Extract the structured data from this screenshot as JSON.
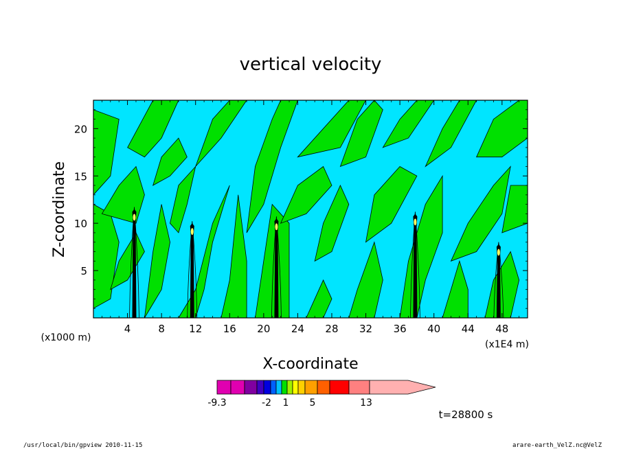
{
  "chart_data": {
    "type": "heatmap",
    "title": "vertical velocity",
    "xlabel": "X-coordinate",
    "ylabel": "Z-coordinate",
    "x_unit_left": "(x1000 m)",
    "x_unit_right": "(x1E4 m)",
    "xlim": [
      0,
      51
    ],
    "ylim": [
      0,
      23
    ],
    "x_ticks": [
      4,
      8,
      12,
      16,
      20,
      24,
      28,
      32,
      36,
      40,
      44,
      48
    ],
    "y_ticks": [
      5,
      10,
      15,
      20
    ],
    "background_level_color": "#00e5ff",
    "green_level_color": "#00e000",
    "updraft_columns": [
      {
        "x": 4.8,
        "top": 11.5
      },
      {
        "x": 11.6,
        "top": 10.0
      },
      {
        "x": 21.5,
        "top": 10.5
      },
      {
        "x": 37.8,
        "top": 11.0
      },
      {
        "x": 47.6,
        "top": 7.8
      }
    ],
    "green_regions": [
      {
        "pts": [
          [
            0,
            13
          ],
          [
            2,
            15
          ],
          [
            3,
            21
          ],
          [
            0,
            22
          ]
        ]
      },
      {
        "pts": [
          [
            0,
            1
          ],
          [
            2,
            2
          ],
          [
            3,
            8
          ],
          [
            2,
            11
          ],
          [
            0,
            12
          ]
        ]
      },
      {
        "pts": [
          [
            1,
            11
          ],
          [
            3,
            14
          ],
          [
            5,
            16
          ],
          [
            6,
            13
          ],
          [
            5,
            10
          ]
        ]
      },
      {
        "pts": [
          [
            4,
            18
          ],
          [
            7,
            23
          ],
          [
            10,
            23
          ],
          [
            8,
            19
          ],
          [
            6,
            17
          ]
        ]
      },
      {
        "pts": [
          [
            6,
            0
          ],
          [
            8,
            3
          ],
          [
            9,
            8
          ],
          [
            8,
            12
          ],
          [
            7,
            7
          ]
        ]
      },
      {
        "pts": [
          [
            9,
            10
          ],
          [
            10,
            14
          ],
          [
            12,
            16
          ],
          [
            11,
            12
          ],
          [
            10,
            9
          ]
        ]
      },
      {
        "pts": [
          [
            10,
            0
          ],
          [
            12,
            3
          ],
          [
            14,
            10
          ],
          [
            16,
            14
          ],
          [
            14,
            8
          ],
          [
            13,
            3
          ],
          [
            12,
            0
          ]
        ]
      },
      {
        "pts": [
          [
            12,
            16
          ],
          [
            14,
            21
          ],
          [
            16,
            23
          ],
          [
            18,
            23
          ],
          [
            15,
            19
          ]
        ]
      },
      {
        "pts": [
          [
            15,
            0
          ],
          [
            16,
            4
          ],
          [
            17,
            13
          ],
          [
            18,
            6
          ],
          [
            18,
            0
          ]
        ]
      },
      {
        "pts": [
          [
            18,
            9
          ],
          [
            19,
            16
          ],
          [
            21,
            21
          ],
          [
            22,
            23
          ],
          [
            24,
            23
          ],
          [
            22,
            18
          ],
          [
            20,
            12
          ]
        ]
      },
      {
        "pts": [
          [
            19,
            0
          ],
          [
            20,
            6
          ],
          [
            21,
            12
          ],
          [
            23,
            10
          ],
          [
            23,
            0
          ]
        ]
      },
      {
        "pts": [
          [
            22,
            10
          ],
          [
            24,
            14
          ],
          [
            27,
            16
          ],
          [
            28,
            14
          ],
          [
            25,
            11
          ]
        ]
      },
      {
        "pts": [
          [
            24,
            17
          ],
          [
            27,
            20
          ],
          [
            30,
            23
          ],
          [
            32,
            23
          ],
          [
            29,
            18
          ]
        ]
      },
      {
        "pts": [
          [
            26,
            6
          ],
          [
            27,
            10
          ],
          [
            29,
            14
          ],
          [
            30,
            12
          ],
          [
            28,
            7
          ]
        ]
      },
      {
        "pts": [
          [
            29,
            16
          ],
          [
            31,
            21
          ],
          [
            33,
            23
          ],
          [
            34,
            22
          ],
          [
            32,
            17
          ]
        ]
      },
      {
        "pts": [
          [
            30,
            0
          ],
          [
            31,
            3
          ],
          [
            33,
            8
          ],
          [
            34,
            4
          ],
          [
            33,
            0
          ]
        ]
      },
      {
        "pts": [
          [
            32,
            8
          ],
          [
            33,
            13
          ],
          [
            36,
            16
          ],
          [
            38,
            15
          ],
          [
            35,
            10
          ]
        ]
      },
      {
        "pts": [
          [
            34,
            18
          ],
          [
            36,
            21
          ],
          [
            38,
            23
          ],
          [
            40,
            23
          ],
          [
            37,
            19
          ]
        ]
      },
      {
        "pts": [
          [
            36,
            0
          ],
          [
            37,
            6
          ],
          [
            39,
            12
          ],
          [
            41,
            15
          ],
          [
            41,
            9
          ],
          [
            39,
            4
          ],
          [
            38,
            0
          ]
        ]
      },
      {
        "pts": [
          [
            39,
            16
          ],
          [
            41,
            20
          ],
          [
            43,
            23
          ],
          [
            45,
            23
          ],
          [
            42,
            18
          ]
        ]
      },
      {
        "pts": [
          [
            41,
            0
          ],
          [
            42,
            3
          ],
          [
            43,
            6
          ],
          [
            44,
            3
          ],
          [
            44,
            0
          ]
        ]
      },
      {
        "pts": [
          [
            42,
            6
          ],
          [
            44,
            10
          ],
          [
            47,
            14
          ],
          [
            49,
            16
          ],
          [
            48,
            11
          ],
          [
            45,
            7
          ]
        ]
      },
      {
        "pts": [
          [
            45,
            17
          ],
          [
            47,
            21
          ],
          [
            50,
            23
          ],
          [
            51,
            23
          ],
          [
            51,
            19
          ],
          [
            48,
            17
          ]
        ]
      },
      {
        "pts": [
          [
            46,
            0
          ],
          [
            47,
            4
          ],
          [
            49,
            7
          ],
          [
            50,
            4
          ],
          [
            49,
            0
          ]
        ]
      },
      {
        "pts": [
          [
            48,
            9
          ],
          [
            49,
            14
          ],
          [
            51,
            14
          ],
          [
            51,
            10
          ]
        ]
      },
      {
        "pts": [
          [
            2,
            3
          ],
          [
            3,
            6
          ],
          [
            5,
            9
          ],
          [
            6,
            7
          ],
          [
            4,
            4
          ]
        ]
      },
      {
        "pts": [
          [
            7,
            14
          ],
          [
            8,
            17
          ],
          [
            10,
            19
          ],
          [
            11,
            17
          ],
          [
            9,
            15
          ]
        ]
      },
      {
        "pts": [
          [
            25,
            0
          ],
          [
            26,
            2
          ],
          [
            27,
            4
          ],
          [
            28,
            2
          ],
          [
            27,
            0
          ]
        ]
      }
    ],
    "colorbar": {
      "colors": [
        "#e000b0",
        "#e000b0",
        "#8000a0",
        "#4000c0",
        "#0000e0",
        "#0060ff",
        "#00c0ff",
        "#00e000",
        "#a0f000",
        "#ffff00",
        "#ffd000",
        "#ffa000",
        "#ff6000",
        "#ff0000",
        "#ff8080",
        "#ffb0b0"
      ],
      "labels": [
        "-9.3",
        "-2",
        "1",
        "5",
        "13"
      ]
    },
    "time_label": "t=28800 s"
  },
  "footer": {
    "left": "/usr/local/bin/gpview  2010-11-15",
    "right": "arare-earth_VelZ.nc@VelZ"
  }
}
